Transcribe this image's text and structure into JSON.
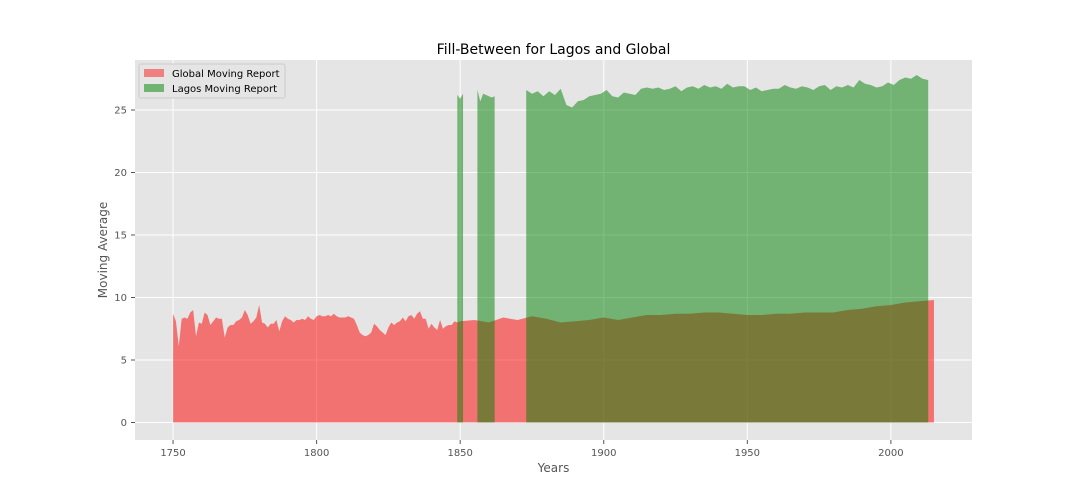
{
  "chart_data": {
    "type": "area",
    "title": "Fill-Between for Lagos and Global",
    "xlabel": "Years",
    "ylabel": "Moving Average",
    "xlim": [
      1736.75,
      2028.25
    ],
    "ylim": [
      -1.4,
      29.0
    ],
    "xticks": [
      1750,
      1800,
      1850,
      1900,
      1950,
      2000
    ],
    "yticks": [
      0,
      5,
      10,
      15,
      20,
      25
    ],
    "grid": true,
    "background": "#e5e5e5",
    "grid_color": "#ffffff",
    "legend_position": "top-left",
    "series": [
      {
        "name": "Global Moving Report",
        "color": "#f08080",
        "fill_color": "#ff0000",
        "opacity": 0.5,
        "baseline": 0,
        "x": [
          1750,
          1751,
          1752,
          1753,
          1754,
          1755,
          1756,
          1757,
          1758,
          1759,
          1760,
          1761,
          1762,
          1763,
          1764,
          1765,
          1766,
          1767,
          1768,
          1769,
          1770,
          1771,
          1772,
          1773,
          1774,
          1775,
          1776,
          1777,
          1778,
          1779,
          1780,
          1781,
          1782,
          1783,
          1784,
          1785,
          1786,
          1787,
          1788,
          1789,
          1790,
          1791,
          1792,
          1793,
          1794,
          1795,
          1796,
          1797,
          1798,
          1799,
          1800,
          1801,
          1802,
          1803,
          1804,
          1805,
          1806,
          1807,
          1808,
          1809,
          1810,
          1811,
          1812,
          1813,
          1814,
          1815,
          1816,
          1817,
          1818,
          1819,
          1820,
          1821,
          1822,
          1823,
          1824,
          1825,
          1826,
          1827,
          1828,
          1829,
          1830,
          1831,
          1832,
          1833,
          1834,
          1835,
          1836,
          1837,
          1838,
          1839,
          1840,
          1841,
          1842,
          1843,
          1844,
          1845,
          1846,
          1847,
          1848,
          1849,
          1850,
          1855,
          1860,
          1865,
          1870,
          1875,
          1880,
          1885,
          1890,
          1895,
          1900,
          1905,
          1910,
          1915,
          1920,
          1925,
          1930,
          1935,
          1940,
          1945,
          1950,
          1955,
          1960,
          1965,
          1970,
          1975,
          1980,
          1985,
          1990,
          1995,
          2000,
          2005,
          2010,
          2015
        ],
        "values": [
          8.7,
          8.1,
          6.1,
          8.3,
          8.4,
          8.3,
          8.8,
          9.0,
          6.9,
          8.0,
          7.9,
          8.8,
          8.6,
          7.8,
          8.1,
          8.4,
          8.3,
          8.3,
          6.8,
          7.6,
          7.8,
          7.8,
          8.1,
          8.2,
          8.4,
          9.0,
          8.6,
          7.9,
          8.1,
          8.4,
          9.4,
          8.0,
          7.9,
          7.6,
          7.9,
          7.9,
          8.2,
          7.3,
          8.1,
          8.5,
          8.3,
          8.2,
          8.0,
          8.2,
          8.2,
          8.3,
          8.2,
          8.5,
          8.3,
          8.2,
          8.5,
          8.6,
          8.5,
          8.5,
          8.6,
          8.5,
          8.7,
          8.5,
          8.4,
          8.4,
          8.4,
          8.5,
          8.4,
          8.3,
          7.8,
          7.2,
          7.0,
          6.9,
          7.0,
          7.2,
          7.9,
          7.7,
          7.4,
          7.2,
          7.0,
          7.6,
          8.0,
          7.8,
          8.0,
          8.1,
          8.4,
          8.1,
          8.5,
          8.6,
          8.3,
          8.7,
          8.9,
          8.3,
          8.3,
          7.5,
          7.9,
          7.6,
          7.4,
          8.2,
          7.5,
          7.7,
          7.8,
          7.8,
          8.1,
          8.0,
          8.1,
          8.2,
          8.0,
          8.4,
          8.2,
          8.5,
          8.3,
          8.0,
          8.1,
          8.2,
          8.4,
          8.2,
          8.4,
          8.6,
          8.6,
          8.7,
          8.7,
          8.8,
          8.8,
          8.7,
          8.6,
          8.6,
          8.7,
          8.7,
          8.8,
          8.8,
          8.8,
          9.0,
          9.1,
          9.3,
          9.4,
          9.6,
          9.7,
          9.8
        ]
      },
      {
        "name": "Lagos Moving Report",
        "color": "#71b371",
        "fill_color": "#008000",
        "opacity": 0.5,
        "baseline": 0,
        "segments": [
          {
            "x": [
              1849,
              1850,
              1851
            ],
            "values": [
              26.2,
              25.9,
              26.3
            ]
          },
          {
            "x": [
              1856,
              1857,
              1858,
              1859,
              1860,
              1861,
              1862
            ],
            "values": [
              26.6,
              25.7,
              26.3,
              26.2,
              26.1,
              26.0,
              26.1
            ]
          },
          {
            "x": [
              1873,
              1875,
              1877,
              1879,
              1881,
              1883,
              1885,
              1887,
              1889,
              1891,
              1893,
              1895,
              1897,
              1899,
              1901,
              1903,
              1905,
              1907,
              1909,
              1911,
              1913,
              1915,
              1917,
              1919,
              1921,
              1923,
              1925,
              1927,
              1929,
              1931,
              1933,
              1935,
              1937,
              1939,
              1941,
              1943,
              1945,
              1947,
              1949,
              1951,
              1953,
              1955,
              1957,
              1959,
              1961,
              1963,
              1965,
              1967,
              1969,
              1971,
              1973,
              1975,
              1977,
              1979,
              1981,
              1983,
              1985,
              1987,
              1989,
              1991,
              1993,
              1995,
              1997,
              1999,
              2001,
              2003,
              2005,
              2007,
              2009,
              2011,
              2013
            ],
            "values": [
              26.6,
              26.3,
              26.5,
              26.1,
              26.5,
              26.2,
              26.7,
              25.4,
              25.2,
              25.7,
              25.8,
              26.1,
              26.2,
              26.3,
              26.6,
              26.1,
              26.0,
              26.4,
              26.3,
              26.2,
              26.7,
              26.8,
              26.7,
              26.8,
              26.6,
              26.7,
              26.9,
              26.5,
              26.8,
              26.9,
              26.7,
              27.0,
              26.8,
              26.9,
              26.7,
              27.1,
              26.8,
              26.9,
              26.9,
              26.6,
              26.8,
              26.5,
              26.6,
              26.7,
              26.7,
              27.0,
              26.8,
              26.7,
              26.9,
              26.8,
              26.6,
              26.9,
              27.0,
              26.6,
              26.9,
              26.8,
              27.0,
              26.8,
              27.4,
              27.1,
              27.0,
              26.8,
              26.9,
              27.2,
              27.0,
              27.4,
              27.6,
              27.5,
              27.8,
              27.5,
              27.4
            ]
          }
        ]
      }
    ]
  }
}
